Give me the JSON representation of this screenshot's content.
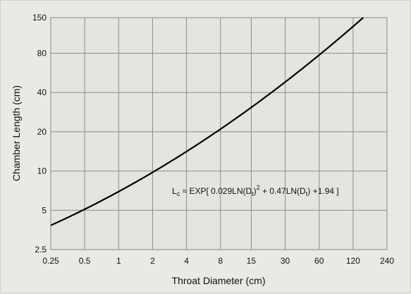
{
  "chart_data": {
    "type": "line",
    "xscale": "log",
    "yscale": "log",
    "xlim": [
      0.25,
      240
    ],
    "ylim": [
      2.5,
      150
    ],
    "xlabel": "Throat Diameter (cm)",
    "ylabel": "Chamber Length (cm)",
    "grid": true,
    "x_ticks": [
      "0.25",
      "0.5",
      "1",
      "2",
      "4",
      "8",
      "15",
      "30",
      "60",
      "120",
      "240"
    ],
    "x_tick_values": [
      0.25,
      0.5,
      1,
      2,
      4,
      8,
      15,
      30,
      60,
      120,
      240
    ],
    "y_ticks": [
      "2.5",
      "5",
      "10",
      "20",
      "40",
      "80",
      "150"
    ],
    "y_tick_values": [
      2.5,
      5,
      10,
      20,
      40,
      80,
      150
    ],
    "series": [
      {
        "color": "#000000",
        "x": [
          0.25,
          0.5,
          1,
          2,
          4,
          8,
          15,
          30,
          60,
          120,
          133
        ],
        "y": [
          3.65,
          5.05,
          6.96,
          9.93,
          14.3,
          21.4,
          31.1,
          48.0,
          78.0,
          128.7,
          150
        ]
      }
    ],
    "annotation": {
      "prefix": "L",
      "prefix_sub": "c",
      "approx": " ≈ EXP[ 0.029LN(D",
      "d_sub": "t",
      "sup_close": ")",
      "sup": "2",
      "middle": " + 0.47LN(D",
      "d_sub2": "t",
      "suffix": ") +1.94 ]"
    }
  }
}
